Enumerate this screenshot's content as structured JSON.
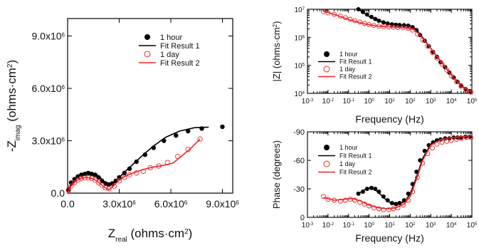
{
  "colors": {
    "series1": "#000000",
    "series2": "#e8262a"
  },
  "chart_data": [
    {
      "type": "scatter",
      "title": "",
      "xlabel": "Z",
      "xlabel_sub": "real",
      "xlabel_unit": " (ohms·cm",
      "ylabel": "-Z",
      "ylabel_sub": "imag",
      "ylabel_unit": " (ohms·cm",
      "xlim": [
        0,
        9600000.0
      ],
      "ylim": [
        0,
        10000000.0
      ],
      "xticks": [
        {
          "v": 0,
          "label": "0.0"
        },
        {
          "v": 3000000.0,
          "label": "3.0x10"
        },
        {
          "v": 6000000.0,
          "label": "6.0x10"
        },
        {
          "v": 9000000.0,
          "label": "9.0x10"
        }
      ],
      "yticks": [
        {
          "v": 0,
          "label": "0.0"
        },
        {
          "v": 3000000.0,
          "label": "3.0x10"
        },
        {
          "v": 6000000.0,
          "label": "6.0x10"
        },
        {
          "v": 9000000.0,
          "label": "9.0x10"
        }
      ],
      "tick_exponent": "6",
      "legend": {
        "placement": "top-right",
        "entries": [
          "1 hour",
          "Fit Result 1",
          "1 day",
          "Fit Result 2"
        ]
      },
      "series": [
        {
          "name": "1 hour",
          "kind": "points",
          "marker": "filled-circle",
          "x": [
            50000.0,
            200000.0,
            400000.0,
            600000.0,
            800000.0,
            1000000.0,
            1200000.0,
            1400000.0,
            1600000.0,
            1800000.0,
            2000000.0,
            2200000.0,
            2400000.0,
            2600000.0,
            2800000.0,
            3000000.0,
            3300000.0,
            3600000.0,
            4000000.0,
            4500000.0,
            5000000.0,
            5600000.0,
            6300000.0,
            7000000.0,
            7800000.0,
            9000000.0
          ],
          "y": [
            200000.0,
            600000.0,
            800000.0,
            950000.0,
            1050000.0,
            1100000.0,
            1150000.0,
            1100000.0,
            1050000.0,
            900000.0,
            700000.0,
            550000.0,
            500000.0,
            550000.0,
            700000.0,
            900000.0,
            1150000.0,
            1400000.0,
            1800000.0,
            2200000.0,
            2600000.0,
            3000000.0,
            3300000.0,
            3550000.0,
            3700000.0,
            3800000.0
          ]
        },
        {
          "name": "Fit Result 1",
          "kind": "line",
          "x": [
            0,
            200000.0,
            500000.0,
            800000.0,
            1100000.0,
            1400000.0,
            1700000.0,
            2000000.0,
            2200000.0,
            2400000.0,
            2600000.0,
            2900000.0,
            3300000.0,
            3800000.0,
            4400000.0,
            5000000.0,
            5700000.0,
            6500000.0,
            7400000.0,
            8200000.0
          ],
          "y": [
            0,
            500000.0,
            850000.0,
            1050000.0,
            1150000.0,
            1150000.0,
            1050000.0,
            800000.0,
            600000.0,
            500000.0,
            550000.0,
            800000.0,
            1200000.0,
            1650000.0,
            2200000.0,
            2700000.0,
            3200000.0,
            3550000.0,
            3750000.0,
            3780000.0
          ]
        },
        {
          "name": "1 day",
          "kind": "points",
          "marker": "open-circle",
          "x": [
            50000.0,
            200000.0,
            400000.0,
            600000.0,
            800000.0,
            1000000.0,
            1200000.0,
            1400000.0,
            1600000.0,
            1800000.0,
            2000000.0,
            2200000.0,
            2400000.0,
            2700000.0,
            3000000.0,
            3300000.0,
            3600000.0,
            4000000.0,
            4400000.0,
            4800000.0,
            5300000.0,
            5800000.0,
            6400000.0,
            7000000.0,
            7700000.0
          ],
          "y": [
            150000.0,
            400000.0,
            600000.0,
            750000.0,
            850000.0,
            880000.0,
            880000.0,
            850000.0,
            750000.0,
            600000.0,
            450000.0,
            300000.0,
            250000.0,
            400000.0,
            700000.0,
            900000.0,
            1050000.0,
            1150000.0,
            1250000.0,
            1450000.0,
            1550000.0,
            1750000.0,
            2100000.0,
            2500000.0,
            3100000.0
          ]
        },
        {
          "name": "Fit Result 2",
          "kind": "line",
          "x": [
            0,
            200000.0,
            500000.0,
            800000.0,
            1100000.0,
            1400000.0,
            1700000.0,
            2000000.0,
            2200000.0,
            2400000.0,
            2600000.0,
            2900000.0,
            3300000.0,
            3800000.0,
            4400000.0,
            5000000.0,
            5600000.0,
            6100000.0,
            6600000.0,
            7200000.0,
            7700000.0
          ],
          "y": [
            0,
            400000.0,
            700000.0,
            850000.0,
            900000.0,
            850000.0,
            700000.0,
            450000.0,
            300000.0,
            200000.0,
            350000.0,
            650000.0,
            950000.0,
            1150000.0,
            1350000.0,
            1500000.0,
            1600000.0,
            1700000.0,
            2100000.0,
            2600000.0,
            3100000.0
          ]
        }
      ]
    },
    {
      "type": "line",
      "title": "",
      "xlabel": "Frequency (Hz)",
      "ylabel": "|Z| (ohms·cm",
      "ylabel_sup": "2",
      "ylabel_close": ")",
      "xscale": "log",
      "yscale": "log",
      "xlim": [
        0.001,
        100000
      ],
      "ylim": [
        10000,
        10000000
      ],
      "xticks_exp": [
        "-3",
        "-2",
        "-1",
        "0",
        "1",
        "2",
        "3",
        "4",
        "5"
      ],
      "yticks_exp": [
        "4",
        "5",
        "6",
        "7"
      ],
      "tick_base": "10",
      "legend": {
        "placement": "left",
        "entries": [
          "1 hour",
          "Fit Result 1",
          "1 day",
          "Fit Result 2"
        ]
      },
      "series": [
        {
          "name": "1 hour",
          "kind": "points",
          "marker": "filled-circle",
          "x": [
            0.3,
            0.5,
            0.8,
            1.3,
            2,
            3,
            5,
            8,
            13,
            20,
            30,
            50,
            80,
            130,
            200,
            300,
            500,
            800,
            1300,
            2000,
            3000,
            5000,
            8000,
            13000,
            20000,
            30000,
            50000,
            80000
          ],
          "y": [
            10000000,
            8000000,
            6500000,
            5300000,
            4500000,
            3900000,
            3400000,
            3100000,
            2900000,
            2800000,
            2750000,
            2700000,
            2600000,
            2300000,
            1800000,
            1200000,
            750000,
            480000,
            300000,
            200000,
            130000,
            85000,
            55000,
            37000,
            26000,
            19000,
            14000,
            12000
          ]
        },
        {
          "name": "Fit Result 1",
          "kind": "line",
          "x": [
            0.3,
            1,
            3,
            10,
            30,
            100,
            200,
            500,
            1000,
            3000,
            10000,
            30000,
            100000
          ],
          "y": [
            10000000,
            5500000,
            3900000,
            2950000,
            2750000,
            2600000,
            1900000,
            800000,
            400000,
            140000,
            45000,
            19000,
            11000
          ]
        },
        {
          "name": "1 day",
          "kind": "points",
          "marker": "open-circle",
          "x": [
            0.006,
            0.01,
            0.02,
            0.04,
            0.07,
            0.12,
            0.2,
            0.35,
            0.6,
            1,
            1.7,
            3,
            5,
            9,
            15,
            25,
            45,
            80,
            130,
            220,
            400,
            700,
            1200,
            2000,
            3500,
            6000,
            10000,
            18000,
            30000,
            55000,
            90000
          ],
          "y": [
            8200000,
            7400000,
            6600000,
            5700000,
            5000000,
            4400000,
            3900000,
            3500000,
            3100000,
            2850000,
            2650000,
            2500000,
            2400000,
            2350000,
            2300000,
            2250000,
            2200000,
            2100000,
            1800000,
            1300000,
            800000,
            480000,
            290000,
            180000,
            110000,
            68000,
            42000,
            26000,
            18000,
            12500,
            11000
          ]
        },
        {
          "name": "Fit Result 2",
          "kind": "line",
          "x": [
            0.006,
            0.02,
            0.1,
            0.5,
            2,
            10,
            50,
            150,
            300,
            1000,
            3000,
            10000,
            30000,
            100000
          ],
          "y": [
            8500000,
            6600000,
            4300000,
            3100000,
            2550000,
            2350000,
            2200000,
            1900000,
            1200000,
            400000,
            140000,
            45000,
            18000,
            11000
          ]
        }
      ]
    },
    {
      "type": "line",
      "title": "",
      "xlabel": "Frequency (Hz)",
      "ylabel": "Phase (degrees)",
      "xscale": "log",
      "xlim": [
        0.001,
        100000
      ],
      "ylim": [
        -90,
        0
      ],
      "xticks_exp": [
        "-3",
        "-2",
        "-1",
        "0",
        "1",
        "2",
        "3",
        "4",
        "5"
      ],
      "tick_base": "10",
      "yticks": [
        {
          "v": -90,
          "label": "-90"
        },
        {
          "v": -60,
          "label": "-60"
        },
        {
          "v": -30,
          "label": "-30"
        },
        {
          "v": 0,
          "label": "0"
        }
      ],
      "legend": {
        "placement": "top-left",
        "entries": [
          "1 hour",
          "Fit Result 1",
          "1 day",
          "Fit Result 2"
        ]
      },
      "series": [
        {
          "name": "1 hour",
          "kind": "points",
          "marker": "filled-circle",
          "x": [
            0.3,
            0.5,
            0.8,
            1.3,
            2,
            3,
            5,
            8,
            13,
            20,
            30,
            50,
            80,
            130,
            200,
            300,
            500,
            800,
            1300,
            2000,
            3000,
            5000,
            8000,
            13000,
            20000,
            30000,
            50000,
            80000
          ],
          "y": [
            -25,
            -27,
            -30,
            -31,
            -30,
            -27,
            -22,
            -18,
            -15,
            -14,
            -15,
            -18,
            -25,
            -35,
            -48,
            -60,
            -70,
            -76,
            -79,
            -81,
            -82,
            -83,
            -83,
            -84,
            -84,
            -84,
            -85,
            -85
          ]
        },
        {
          "name": "Fit Result 1",
          "kind": "line",
          "x": [
            0.3,
            0.6,
            1,
            2,
            4,
            8,
            15,
            30,
            60,
            100,
            200,
            400,
            1000,
            3000,
            10000,
            30000,
            100000
          ],
          "y": [
            -25,
            -29,
            -31,
            -29,
            -23,
            -17,
            -14,
            -14,
            -18,
            -25,
            -42,
            -62,
            -77,
            -82,
            -84,
            -85,
            -86
          ]
        },
        {
          "name": "1 day",
          "kind": "points",
          "marker": "open-circle",
          "x": [
            0.006,
            0.01,
            0.02,
            0.04,
            0.07,
            0.12,
            0.2,
            0.35,
            0.6,
            1,
            1.7,
            3,
            5,
            9,
            15,
            25,
            45,
            80,
            130,
            220,
            400,
            700,
            1200,
            2000,
            3500,
            6000,
            10000,
            18000,
            30000,
            55000,
            90000
          ],
          "y": [
            -22,
            -19,
            -18,
            -17,
            -18,
            -19,
            -18,
            -16,
            -14,
            -12,
            -10,
            -9,
            -8,
            -8,
            -9,
            -10,
            -13,
            -18,
            -27,
            -42,
            -57,
            -67,
            -73,
            -77,
            -79,
            -80,
            -81,
            -82,
            -83,
            -84,
            -84
          ]
        },
        {
          "name": "Fit Result 2",
          "kind": "line",
          "x": [
            0.006,
            0.02,
            0.06,
            0.15,
            0.4,
            1,
            3,
            8,
            20,
            50,
            100,
            200,
            400,
            1000,
            3000,
            10000,
            30000,
            100000
          ],
          "y": [
            -21,
            -18,
            -19,
            -20,
            -17,
            -13,
            -10,
            -9,
            -10,
            -14,
            -22,
            -40,
            -60,
            -76,
            -82,
            -84,
            -85,
            -86
          ]
        }
      ]
    }
  ]
}
